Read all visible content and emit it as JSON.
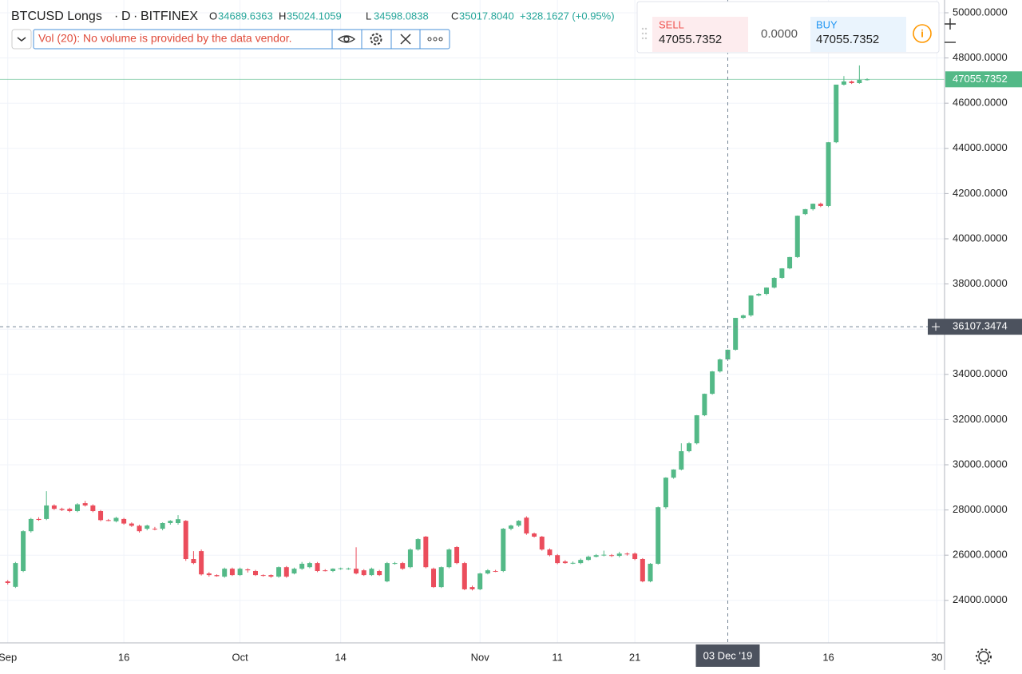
{
  "header": {
    "symbol": "BTCUSD Longs",
    "interval": "D",
    "exchange": "BITFINEX",
    "open_label": "O",
    "open": "34689.6363",
    "high_label": "H",
    "high": "35024.1059",
    "low_label": "L",
    "low": "34598.0838",
    "close_label": "C",
    "close": "35017.8040",
    "change": "+328.1627 (+0.95%)",
    "indicator": "Vol (20): No volume is provided by the data vendor."
  },
  "trade": {
    "sell_label": "SELL",
    "sell": "47055.7352",
    "spread": "0.0000",
    "buy_label": "BUY",
    "buy": "47055.7352"
  },
  "chart_data": {
    "type": "candlestick",
    "up_color": "#53b987",
    "down_color": "#eb4d5c",
    "grid": true,
    "xlim": [
      "2019-08-31",
      "2019-12-31"
    ],
    "xticks": [
      {
        "value": "2019-09-01",
        "label": "Sep"
      },
      {
        "value": "2019-09-16",
        "label": "16"
      },
      {
        "value": "2019-10-01",
        "label": "Oct"
      },
      {
        "value": "2019-10-14",
        "label": "14"
      },
      {
        "value": "2019-11-01",
        "label": "Nov"
      },
      {
        "value": "2019-11-11",
        "label": "11"
      },
      {
        "value": "2019-11-21",
        "label": "21"
      },
      {
        "value": "2019-12-16",
        "label": "16"
      },
      {
        "value": "2019-12-30",
        "label": "30"
      }
    ],
    "ylim": [
      22120,
      50565
    ],
    "yticks": [
      {
        "value": 24000,
        "label": "24000.0000"
      },
      {
        "value": 26000,
        "label": "26000.0000"
      },
      {
        "value": 28000,
        "label": "28000.0000"
      },
      {
        "value": 30000,
        "label": "30000.0000"
      },
      {
        "value": 32000,
        "label": "32000.0000"
      },
      {
        "value": 34000,
        "label": "34000.0000"
      },
      {
        "value": 36000,
        "label": "36000.0000"
      },
      {
        "value": 38000,
        "label": "38000.0000"
      },
      {
        "value": 40000,
        "label": "40000.0000"
      },
      {
        "value": 42000,
        "label": "42000.0000"
      },
      {
        "value": 44000,
        "label": "44000.0000"
      },
      {
        "value": 46000,
        "label": "46000.0000"
      },
      {
        "value": 48000,
        "label": "48000.0000"
      },
      {
        "value": 50000,
        "label": "50000.0000"
      }
    ],
    "last_price": {
      "value": 47055.7352,
      "label": "47055.7352"
    },
    "crosshair_price": {
      "value": 36107.3474,
      "label": "36107.3474"
    },
    "crosshair_date": {
      "value": "2019-12-03",
      "label": "03 Dec '19"
    },
    "x": [
      "2019-09-01",
      "2019-09-02",
      "2019-09-03",
      "2019-09-04",
      "2019-09-05",
      "2019-09-06",
      "2019-09-07",
      "2019-09-08",
      "2019-09-09",
      "2019-09-10",
      "2019-09-11",
      "2019-09-12",
      "2019-09-13",
      "2019-09-14",
      "2019-09-15",
      "2019-09-16",
      "2019-09-17",
      "2019-09-18",
      "2019-09-19",
      "2019-09-20",
      "2019-09-21",
      "2019-09-22",
      "2019-09-23",
      "2019-09-24",
      "2019-09-25",
      "2019-09-26",
      "2019-09-27",
      "2019-09-28",
      "2019-09-29",
      "2019-09-30",
      "2019-10-01",
      "2019-10-02",
      "2019-10-03",
      "2019-10-04",
      "2019-10-05",
      "2019-10-06",
      "2019-10-07",
      "2019-10-08",
      "2019-10-09",
      "2019-10-10",
      "2019-10-11",
      "2019-10-12",
      "2019-10-13",
      "2019-10-14",
      "2019-10-15",
      "2019-10-16",
      "2019-10-17",
      "2019-10-18",
      "2019-10-19",
      "2019-10-20",
      "2019-10-21",
      "2019-10-22",
      "2019-10-23",
      "2019-10-24",
      "2019-10-25",
      "2019-10-26",
      "2019-10-27",
      "2019-10-28",
      "2019-10-29",
      "2019-10-30",
      "2019-10-31",
      "2019-11-01",
      "2019-11-02",
      "2019-11-03",
      "2019-11-04",
      "2019-11-05",
      "2019-11-06",
      "2019-11-07",
      "2019-11-08",
      "2019-11-09",
      "2019-11-10",
      "2019-11-11",
      "2019-11-12",
      "2019-11-13",
      "2019-11-14",
      "2019-11-15",
      "2019-11-16",
      "2019-11-17",
      "2019-11-18",
      "2019-11-19",
      "2019-11-20",
      "2019-11-21",
      "2019-11-22",
      "2019-11-23",
      "2019-11-24",
      "2019-11-25",
      "2019-11-26",
      "2019-11-27",
      "2019-11-28",
      "2019-11-29",
      "2019-11-30",
      "2019-12-01",
      "2019-12-02",
      "2019-12-03",
      "2019-12-04",
      "2019-12-05",
      "2019-12-06",
      "2019-12-07",
      "2019-12-08",
      "2019-12-09",
      "2019-12-10",
      "2019-12-11",
      "2019-12-12",
      "2019-12-13",
      "2019-12-14",
      "2019-12-15",
      "2019-12-16",
      "2019-12-17",
      "2019-12-18",
      "2019-12-19",
      "2019-12-20",
      "2019-12-21"
    ],
    "ohlc": [
      [
        24840,
        24900,
        24700,
        24770
      ],
      [
        24600,
        25700,
        24550,
        25650
      ],
      [
        25300,
        27100,
        25250,
        27060
      ],
      [
        27060,
        27650,
        27000,
        27600
      ],
      [
        27600,
        27680,
        27520,
        27560
      ],
      [
        27600,
        28830,
        27550,
        28200
      ],
      [
        28200,
        28250,
        28000,
        28050
      ],
      [
        28050,
        28100,
        27950,
        28000
      ],
      [
        28050,
        28100,
        27900,
        27950
      ],
      [
        27950,
        28300,
        27900,
        28250
      ],
      [
        28300,
        28400,
        28150,
        28200
      ],
      [
        28200,
        28250,
        27900,
        27950
      ],
      [
        27950,
        28000,
        27500,
        27550
      ],
      [
        27550,
        27600,
        27500,
        27520
      ],
      [
        27500,
        27700,
        27450,
        27650
      ],
      [
        27600,
        27650,
        27350,
        27400
      ],
      [
        27400,
        27450,
        27250,
        27300
      ],
      [
        27300,
        27350,
        27000,
        27060
      ],
      [
        27170,
        27350,
        27100,
        27310
      ],
      [
        27170,
        27250,
        27100,
        27150
      ],
      [
        27170,
        27450,
        27100,
        27420
      ],
      [
        27420,
        27550,
        27350,
        27520
      ],
      [
        27420,
        27770,
        27350,
        27590
      ],
      [
        27520,
        27550,
        25750,
        25830
      ],
      [
        25830,
        26180,
        25600,
        25650
      ],
      [
        26180,
        26250,
        25100,
        25150
      ],
      [
        25190,
        25250,
        25050,
        25120
      ],
      [
        25120,
        25150,
        25050,
        25070
      ],
      [
        25050,
        25450,
        25000,
        25400
      ],
      [
        25400,
        25450,
        25080,
        25120
      ],
      [
        25120,
        25450,
        25080,
        25400
      ],
      [
        25370,
        25420,
        25230,
        25330
      ],
      [
        25300,
        25350,
        25080,
        25120
      ],
      [
        25120,
        25150,
        25050,
        25100
      ],
      [
        25120,
        25150,
        25000,
        25050
      ],
      [
        25050,
        25500,
        25000,
        25470
      ],
      [
        25470,
        25520,
        25000,
        25050
      ],
      [
        25190,
        25450,
        25150,
        25400
      ],
      [
        25400,
        25700,
        25350,
        25620
      ],
      [
        25470,
        25700,
        25420,
        25650
      ],
      [
        25650,
        25700,
        25250,
        25300
      ],
      [
        25330,
        25380,
        25280,
        25300
      ],
      [
        25300,
        25420,
        25250,
        25400
      ],
      [
        25400,
        25450,
        25350,
        25420
      ],
      [
        25400,
        25450,
        25350,
        25410
      ],
      [
        25400,
        26350,
        25150,
        25190
      ],
      [
        25330,
        25380,
        25080,
        25120
      ],
      [
        25120,
        25450,
        25080,
        25400
      ],
      [
        25300,
        25350,
        25080,
        25120
      ],
      [
        24840,
        25700,
        24800,
        25650
      ],
      [
        25620,
        25700,
        25580,
        25650
      ],
      [
        25650,
        25700,
        25350,
        25400
      ],
      [
        25470,
        26300,
        25420,
        26250
      ],
      [
        26250,
        26750,
        26200,
        26710
      ],
      [
        26820,
        26850,
        25420,
        25470
      ],
      [
        25400,
        25450,
        24550,
        24590
      ],
      [
        24590,
        25500,
        24550,
        25470
      ],
      [
        25470,
        26300,
        25420,
        26250
      ],
      [
        26360,
        26400,
        25600,
        25650
      ],
      [
        25650,
        25700,
        24450,
        24490
      ],
      [
        24590,
        24650,
        24440,
        24490
      ],
      [
        24490,
        25220,
        24450,
        25190
      ],
      [
        25190,
        25380,
        25150,
        25330
      ],
      [
        25300,
        25350,
        25250,
        25280
      ],
      [
        25300,
        27200,
        25250,
        27170
      ],
      [
        27170,
        27350,
        27100,
        27310
      ],
      [
        27310,
        27550,
        27250,
        27520
      ],
      [
        27660,
        27720,
        26900,
        26960
      ],
      [
        26960,
        27000,
        26780,
        26820
      ],
      [
        26820,
        26850,
        26200,
        26250
      ],
      [
        26250,
        26300,
        25950,
        26000
      ],
      [
        26000,
        26050,
        25600,
        25650
      ],
      [
        25720,
        25780,
        25620,
        25650
      ],
      [
        25650,
        25720,
        25600,
        25660
      ],
      [
        25650,
        25850,
        25600,
        25790
      ],
      [
        25790,
        25980,
        25750,
        25930
      ],
      [
        25930,
        26050,
        25900,
        26000
      ],
      [
        26000,
        26200,
        25950,
        26020
      ],
      [
        26000,
        26050,
        25920,
        25980
      ],
      [
        25970,
        26150,
        25900,
        26070
      ],
      [
        26070,
        26120,
        25980,
        26050
      ],
      [
        26070,
        26120,
        25780,
        25830
      ],
      [
        25830,
        25870,
        24800,
        24840
      ],
      [
        24840,
        25650,
        24800,
        25620
      ],
      [
        25620,
        28150,
        25580,
        28120
      ],
      [
        28120,
        29450,
        28050,
        29430
      ],
      [
        29430,
        29800,
        29380,
        29790
      ],
      [
        29790,
        30950,
        29750,
        30600
      ],
      [
        30600,
        31000,
        30550,
        30950
      ],
      [
        30950,
        32200,
        30900,
        32190
      ],
      [
        32190,
        33150,
        32150,
        33140
      ],
      [
        33140,
        34150,
        33100,
        34130
      ],
      [
        34130,
        34700,
        34080,
        34660
      ],
      [
        34660,
        35100,
        34600,
        35090
      ],
      [
        35090,
        36500,
        35050,
        36500
      ],
      [
        36500,
        36650,
        36450,
        36610
      ],
      [
        36610,
        37500,
        36550,
        37490
      ],
      [
        37490,
        37600,
        37450,
        37560
      ],
      [
        37560,
        37850,
        37500,
        37840
      ],
      [
        37840,
        38300,
        37800,
        38270
      ],
      [
        38270,
        38700,
        38230,
        38690
      ],
      [
        38690,
        39200,
        38650,
        39190
      ],
      [
        39190,
        41030,
        39150,
        41020
      ],
      [
        41090,
        41320,
        41050,
        41310
      ],
      [
        41310,
        41560,
        41250,
        41550
      ],
      [
        41550,
        41600,
        41400,
        41450
      ],
      [
        41450,
        44280,
        41400,
        44270
      ],
      [
        44270,
        46820,
        44230,
        46820
      ],
      [
        46820,
        47200,
        46780,
        46960
      ],
      [
        46960,
        47000,
        46850,
        46890
      ],
      [
        46890,
        47670,
        46860,
        47030
      ],
      [
        47030,
        47100,
        47000,
        47055.7352
      ]
    ]
  }
}
